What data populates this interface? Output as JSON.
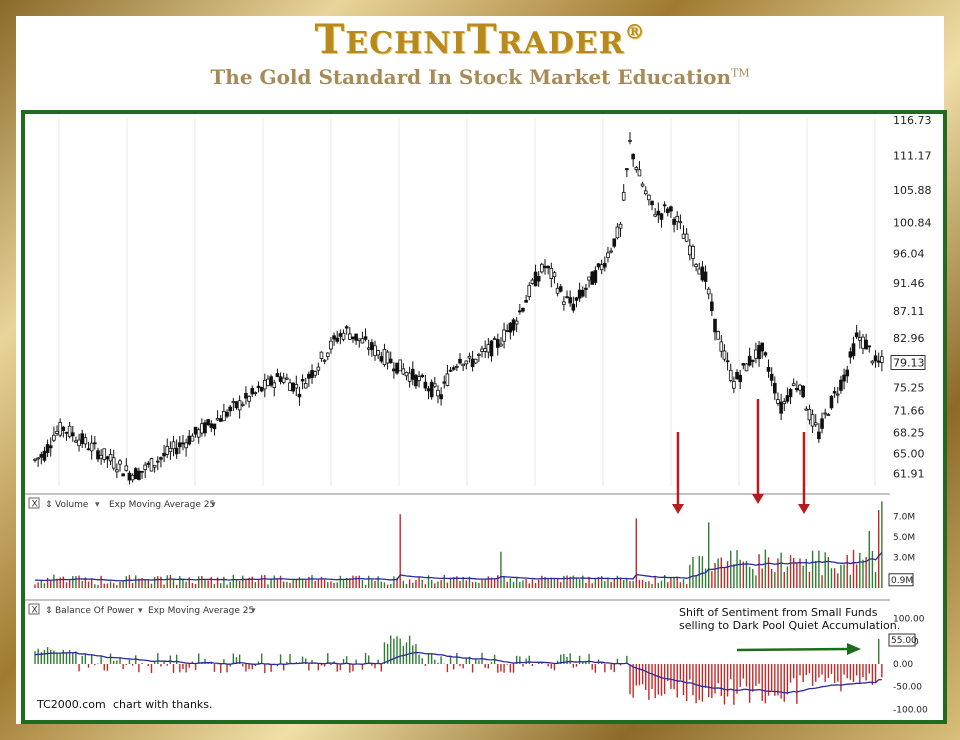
{
  "header": {
    "brand_part1": "TECHNI",
    "brand_part2": "TRADER",
    "registered": "®",
    "tagline": "The Gold Standard In Stock Market Education",
    "trademark": "TM"
  },
  "colors": {
    "up": "#2e7d32",
    "down": "#c62828",
    "ma": "#2a2a9a",
    "arrow_red": "#b71c1c",
    "arrow_green": "#1b6e1b",
    "frame_green": "#1f6b1f",
    "gold": "#b88a1e"
  },
  "chart_data": [
    {
      "type": "candlestick",
      "panel": "price",
      "y_ticks": [
        "116.73",
        "111.17",
        "105.88",
        "100.84",
        "96.04",
        "91.46",
        "87.11",
        "82.96",
        "79.13",
        "75.25",
        "71.66",
        "68.25",
        "65.00",
        "61.91"
      ],
      "ylim": [
        60,
        117
      ],
      "last_price": "79.13",
      "closes_approx": [
        64,
        65,
        68,
        69,
        68,
        67,
        66,
        65,
        64,
        63,
        62,
        62,
        63,
        64,
        65,
        66,
        67,
        68,
        69,
        70,
        71,
        72,
        73,
        74,
        75,
        76,
        77,
        76,
        75,
        77,
        79,
        81,
        83,
        84,
        83,
        82,
        81,
        80,
        79,
        78,
        77,
        76,
        75,
        74,
        78,
        80,
        79,
        80,
        81,
        82,
        84,
        86,
        89,
        92,
        94,
        92,
        89,
        88,
        90,
        92,
        94,
        97,
        100,
        113,
        108,
        104,
        102,
        103,
        101,
        98,
        95,
        92,
        85,
        80,
        76,
        78,
        80,
        81,
        77,
        72,
        75,
        76,
        71,
        68,
        72,
        75,
        78,
        83,
        82,
        79
      ]
    },
    {
      "type": "bar",
      "panel": "volume",
      "indicator": "Volume",
      "overlay": "Exp Moving Average 25",
      "y_ticks": [
        "7.0M",
        "5.0M",
        "3.0M"
      ],
      "last_value": "0.9M",
      "ylim": [
        0,
        8
      ]
    },
    {
      "type": "bar",
      "panel": "balance_of_power",
      "indicator": "Balance Of Power",
      "overlay": "Exp Moving Average 25",
      "y_ticks": [
        "100.00",
        "50.00",
        "0.00",
        "-50.00",
        "-100.00"
      ],
      "last_value": "55.00",
      "ylim": [
        -110,
        110
      ]
    }
  ],
  "annotations": {
    "sentiment_line1": "Shift of Sentiment from Small Funds",
    "sentiment_line2": "selling to Dark Pool Quiet Accumulation.",
    "credit_source": "TC2000.com",
    "credit_text": "chart with thanks."
  },
  "panel_controls": {
    "close_glyph": "X",
    "updown_glyph": "⇕",
    "dropdown_glyph": "▾"
  }
}
